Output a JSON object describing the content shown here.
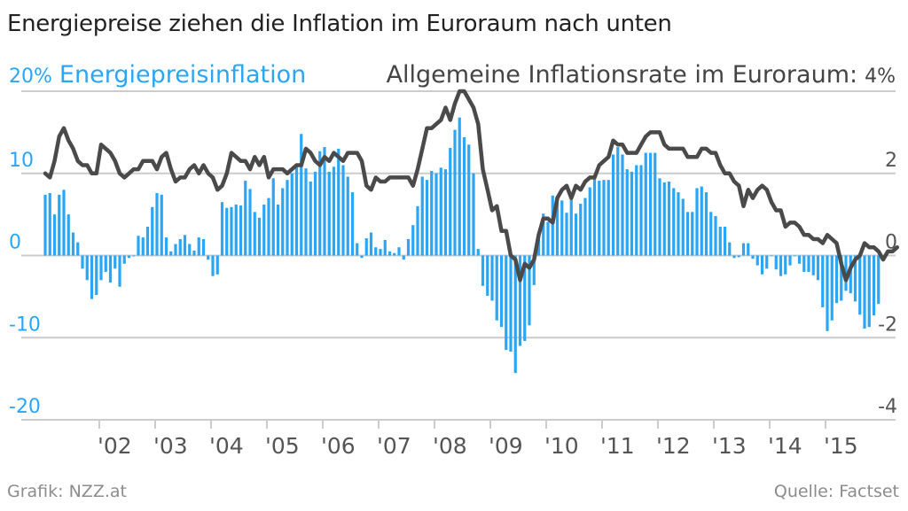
{
  "header": {
    "title": "Energiepreise ziehen die Inflation im Euroraum nach unten"
  },
  "footer": {
    "credit": "Grafik: NZZ.at",
    "source": "Quelle: Factset"
  },
  "colors": {
    "energy": "#2aa6f5",
    "inflation": "#4a4a4a",
    "grid": "#cccccc",
    "text": "#222222",
    "muted": "#8c8c8c"
  },
  "chart_data": {
    "type": "bar+line",
    "title": "Energiepreise ziehen die Inflation im Euroraum nach unten",
    "start": "2001-01",
    "frequency": "monthly",
    "x_tick_labels": [
      "'02",
      "'03",
      "'04",
      "'05",
      "'06",
      "'07",
      "'08",
      "'09",
      "'10",
      "'11",
      "'12",
      "'13",
      "'14",
      "'15"
    ],
    "left_axis": {
      "label": "Energiepreisinflation",
      "unit": "%",
      "top_label": "20%",
      "ticks": [
        "20%",
        "10",
        "0",
        "-10",
        "-20"
      ],
      "tick_values": [
        20,
        10,
        0,
        -10,
        -20
      ],
      "ylim": [
        -20,
        20
      ]
    },
    "right_axis": {
      "label": "Allgemeine Inflationsrate im Euroraum:",
      "unit": "%",
      "top_label": "4%",
      "ticks": [
        "4%",
        "2",
        "0",
        "-2",
        "-4"
      ],
      "tick_values": [
        4,
        2,
        0,
        -2,
        -4
      ],
      "ylim": [
        -4,
        4
      ]
    },
    "series": [
      {
        "name": "Energiepreisinflation",
        "type": "bar",
        "axis": "left",
        "values": [
          7.4,
          7.6,
          5.0,
          7.4,
          8.0,
          5.0,
          2.8,
          1.6,
          -1.6,
          -3.0,
          -5.3,
          -4.8,
          -3.0,
          -2.0,
          -3.3,
          -1.6,
          -3.8,
          -1.0,
          -0.3,
          -0.1,
          2.4,
          2.2,
          3.5,
          5.9,
          7.6,
          7.4,
          2.2,
          0.5,
          1.4,
          2.0,
          2.5,
          1.4,
          0.6,
          2.2,
          2.0,
          -0.5,
          -2.5,
          -2.3,
          6.5,
          5.8,
          5.9,
          6.2,
          6.1,
          9.1,
          8.1,
          5.3,
          4.6,
          6.2,
          7.0,
          9.4,
          6.2,
          8.2,
          9.2,
          10.0,
          10.8,
          14.8,
          10.6,
          9.0,
          10.2,
          12.7,
          13.2,
          10.2,
          10.8,
          13.0,
          11.0,
          9.6,
          7.7,
          1.5,
          -0.3,
          2.1,
          2.8,
          1.0,
          0.8,
          1.9,
          0.5,
          0.3,
          1.0,
          -0.5,
          2.0,
          3.7,
          6.0,
          9.6,
          9.2,
          10.3,
          10.0,
          10.7,
          10.5,
          13.1,
          15.3,
          16.8,
          14.4,
          13.5,
          10.0,
          0.8,
          -3.7,
          -4.9,
          -5.5,
          -7.9,
          -8.7,
          -11.5,
          -11.7,
          -14.3,
          -11.0,
          -10.4,
          -8.5,
          -3.6,
          2.7,
          5.1,
          4.1,
          7.3,
          7.2,
          6.7,
          5.2,
          7.3,
          5.1,
          6.3,
          7.0,
          8.3,
          9.8,
          9.1,
          9.2,
          9.2,
          12.3,
          13.2,
          12.3,
          10.5,
          10.2,
          11.0,
          11.0,
          12.5,
          12.5,
          12.5,
          9.4,
          8.9,
          9.0,
          8.2,
          7.7,
          6.9,
          5.3,
          5.3,
          8.2,
          8.4,
          7.7,
          5.3,
          4.8,
          3.5,
          3.5,
          1.6,
          -0.3,
          -0.2,
          1.5,
          1.5,
          -0.4,
          -1.2,
          -2.3,
          -1.6,
          0.0,
          -1.7,
          -2.5,
          -2.3,
          -1.2,
          0.0,
          -1.0,
          -2.0,
          -2.0,
          -2.4,
          -3.0,
          -6.3,
          -9.2,
          -7.9,
          -5.8,
          -5.5,
          -4.3,
          -4.6,
          -5.6,
          -7.2,
          -8.9,
          -8.7,
          -7.3,
          -5.9
        ]
      },
      {
        "name": "Allgemeine Inflationsrate im Euroraum",
        "type": "line",
        "axis": "right",
        "values": [
          2.0,
          1.9,
          2.3,
          2.9,
          3.1,
          2.8,
          2.6,
          2.3,
          2.2,
          2.2,
          2.0,
          2.0,
          2.7,
          2.6,
          2.5,
          2.3,
          2.0,
          1.9,
          2.0,
          2.1,
          2.1,
          2.3,
          2.3,
          2.3,
          2.1,
          2.4,
          2.5,
          2.1,
          1.8,
          1.9,
          1.9,
          2.1,
          2.2,
          2.0,
          2.2,
          2.0,
          1.9,
          1.6,
          1.7,
          2.0,
          2.5,
          2.4,
          2.3,
          2.3,
          2.1,
          2.4,
          2.2,
          2.4,
          1.9,
          2.1,
          2.1,
          2.1,
          2.0,
          2.1,
          2.2,
          2.2,
          2.6,
          2.5,
          2.3,
          2.2,
          2.4,
          2.3,
          2.5,
          2.4,
          2.3,
          2.5,
          2.5,
          2.5,
          2.3,
          1.7,
          1.6,
          1.9,
          1.8,
          1.8,
          1.9,
          1.9,
          1.9,
          1.9,
          1.9,
          1.7,
          2.1,
          2.6,
          3.1,
          3.1,
          3.2,
          3.3,
          3.6,
          3.3,
          3.7,
          4.0,
          4.0,
          3.8,
          3.6,
          3.2,
          2.1,
          1.6,
          1.1,
          1.2,
          0.6,
          0.6,
          0.0,
          -0.1,
          -0.6,
          -0.2,
          -0.3,
          -0.1,
          0.5,
          0.9,
          0.9,
          0.8,
          1.4,
          1.6,
          1.7,
          1.4,
          1.7,
          1.6,
          1.8,
          1.9,
          1.9,
          2.2,
          2.3,
          2.4,
          2.8,
          2.7,
          2.7,
          2.5,
          2.5,
          2.5,
          2.7,
          2.9,
          3.0,
          3.0,
          3.0,
          2.7,
          2.6,
          2.6,
          2.6,
          2.6,
          2.4,
          2.4,
          2.4,
          2.6,
          2.6,
          2.5,
          2.5,
          2.2,
          2.0,
          2.0,
          1.8,
          1.7,
          1.2,
          1.6,
          1.4,
          1.6,
          1.7,
          1.6,
          1.3,
          1.1,
          1.1,
          0.7,
          0.8,
          0.8,
          0.7,
          0.5,
          0.5,
          0.4,
          0.4,
          0.3,
          0.5,
          0.4,
          0.3,
          -0.2,
          -0.6,
          -0.3,
          -0.1,
          0.0,
          0.3,
          0.2,
          0.2,
          0.1,
          -0.1,
          0.1,
          0.1,
          0.2
        ]
      }
    ],
    "grid": true,
    "legend": "top (axis titles as legend)"
  }
}
